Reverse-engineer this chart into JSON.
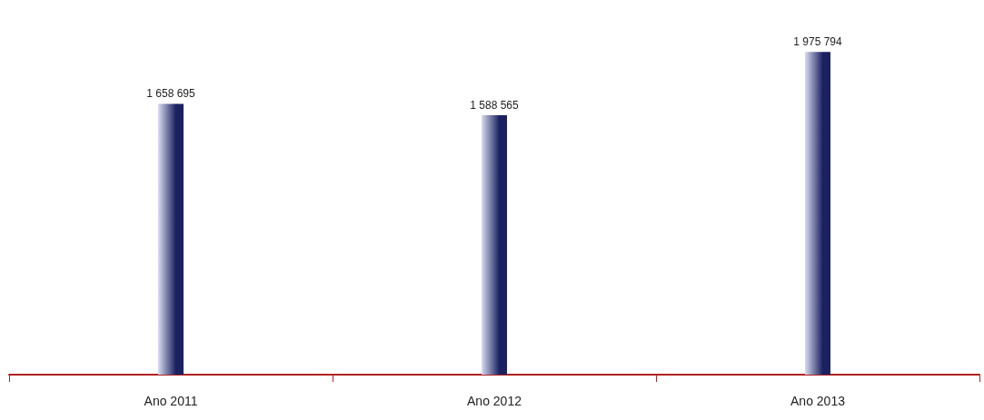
{
  "chart_data": {
    "type": "bar",
    "categories": [
      "Ano 2011",
      "Ano 2012",
      "Ano 2013"
    ],
    "series": [
      {
        "color": "#1b2160",
        "values": [
          1658695,
          1588565,
          1975794
        ],
        "value_labels": [
          "1 658 695",
          "1 588 565",
          "1 975 794"
        ]
      }
    ],
    "tick_labels": "x"
  }
}
